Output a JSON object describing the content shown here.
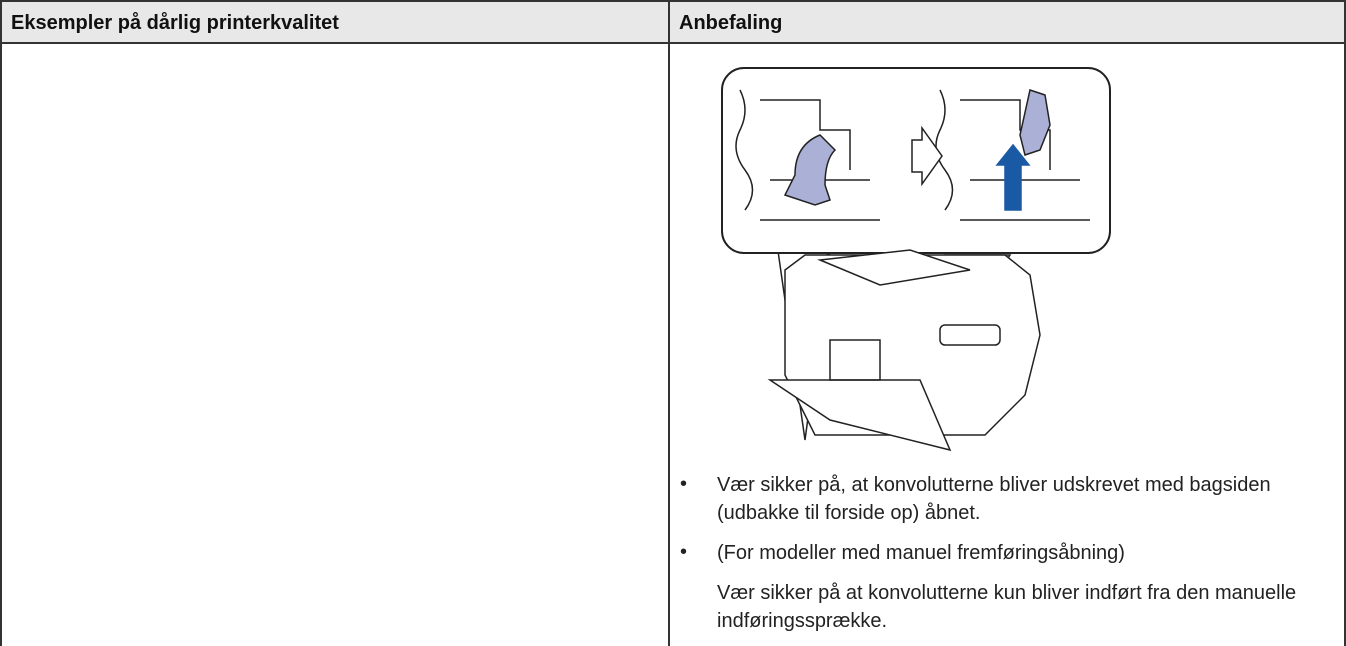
{
  "table": {
    "header": [
      "Eksempler på dårlig printerkvalitet",
      "Anbefaling"
    ],
    "rows": [
      {
        "recommendation": [
          {
            "text": "Vær sikker på, at konvolutterne bliver udskrevet med bagsiden (udbakke til forside op) åbnet."
          },
          {
            "text": "(For modeller med manuel fremføringsåbning)",
            "note": "Vær sikker på at konvolutterne kun bliver indført fra den manuelle indføringssprække."
          }
        ]
      }
    ]
  }
}
